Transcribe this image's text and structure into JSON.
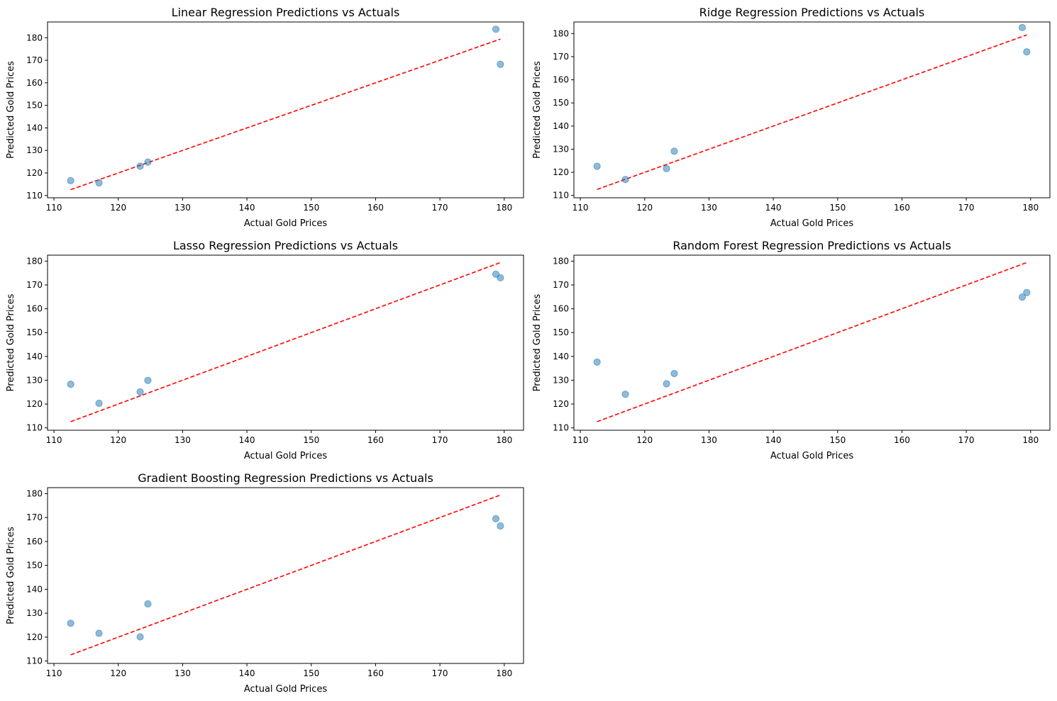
{
  "chart_data": [
    {
      "type": "scatter",
      "title": "Linear Regression Predictions vs Actuals",
      "xlabel": "Actual Gold Prices",
      "ylabel": "Predicted Gold Prices",
      "xlim": [
        109,
        183
      ],
      "ylim": [
        109,
        187
      ],
      "xticks": [
        110,
        120,
        130,
        140,
        150,
        160,
        170,
        180
      ],
      "yticks": [
        110,
        120,
        130,
        140,
        150,
        160,
        170,
        180
      ],
      "x": [
        112.6,
        117.0,
        123.4,
        124.6,
        178.7,
        179.4
      ],
      "y": [
        116.6,
        115.6,
        123.0,
        124.8,
        183.8,
        168.2
      ],
      "reference_line": [
        [
          112.6,
          112.6
        ],
        [
          179.4,
          179.4
        ]
      ]
    },
    {
      "type": "scatter",
      "title": "Ridge Regression Predictions vs Actuals",
      "xlabel": "Actual Gold Prices",
      "ylabel": "Predicted Gold Prices",
      "xlim": [
        109,
        183
      ],
      "ylim": [
        109,
        185
      ],
      "xticks": [
        110,
        120,
        130,
        140,
        150,
        160,
        170,
        180
      ],
      "yticks": [
        110,
        120,
        130,
        140,
        150,
        160,
        170,
        180
      ],
      "x": [
        112.6,
        117.0,
        123.4,
        124.6,
        178.7,
        179.4
      ],
      "y": [
        122.6,
        116.9,
        121.6,
        129.1,
        182.6,
        172.1
      ],
      "reference_line": [
        [
          112.6,
          112.6
        ],
        [
          179.4,
          179.4
        ]
      ]
    },
    {
      "type": "scatter",
      "title": "Lasso Regression Predictions vs Actuals",
      "xlabel": "Actual Gold Prices",
      "ylabel": "Predicted Gold Prices",
      "xlim": [
        109,
        183
      ],
      "ylim": [
        109,
        182.5
      ],
      "xticks": [
        110,
        120,
        130,
        140,
        150,
        160,
        170,
        180
      ],
      "yticks": [
        110,
        120,
        130,
        140,
        150,
        160,
        170,
        180
      ],
      "x": [
        112.6,
        117.0,
        123.4,
        124.6,
        178.7,
        179.4
      ],
      "y": [
        128.3,
        120.3,
        125.1,
        129.9,
        174.5,
        173.0
      ],
      "reference_line": [
        [
          112.6,
          112.6
        ],
        [
          179.4,
          179.4
        ]
      ]
    },
    {
      "type": "scatter",
      "title": "Random Forest Regression Predictions vs Actuals",
      "xlabel": "Actual Gold Prices",
      "ylabel": "Predicted Gold Prices",
      "xlim": [
        109,
        183
      ],
      "ylim": [
        109,
        182.5
      ],
      "xticks": [
        110,
        120,
        130,
        140,
        150,
        160,
        170,
        180
      ],
      "yticks": [
        110,
        120,
        130,
        140,
        150,
        160,
        170,
        180
      ],
      "x": [
        112.6,
        117.0,
        123.4,
        124.6,
        178.7,
        179.4
      ],
      "y": [
        137.6,
        124.1,
        128.5,
        132.8,
        164.9,
        166.8
      ],
      "reference_line": [
        [
          112.6,
          112.6
        ],
        [
          179.4,
          179.4
        ]
      ]
    },
    {
      "type": "scatter",
      "title": "Gradient Boosting Regression Predictions vs Actuals",
      "xlabel": "Actual Gold Prices",
      "ylabel": "Predicted Gold Prices",
      "xlim": [
        109,
        183
      ],
      "ylim": [
        109,
        182.5
      ],
      "xticks": [
        110,
        120,
        130,
        140,
        150,
        160,
        170,
        180
      ],
      "yticks": [
        110,
        120,
        130,
        140,
        150,
        160,
        170,
        180
      ],
      "x": [
        112.6,
        117.0,
        123.4,
        124.6,
        178.7,
        179.4
      ],
      "y": [
        125.8,
        121.6,
        120.1,
        133.9,
        169.5,
        166.5
      ],
      "reference_line": [
        [
          112.6,
          112.6
        ],
        [
          179.4,
          179.4
        ]
      ]
    }
  ],
  "colors": {
    "points": "#1f77b4",
    "reference_line": "#ff0000",
    "axes": "#000000"
  }
}
